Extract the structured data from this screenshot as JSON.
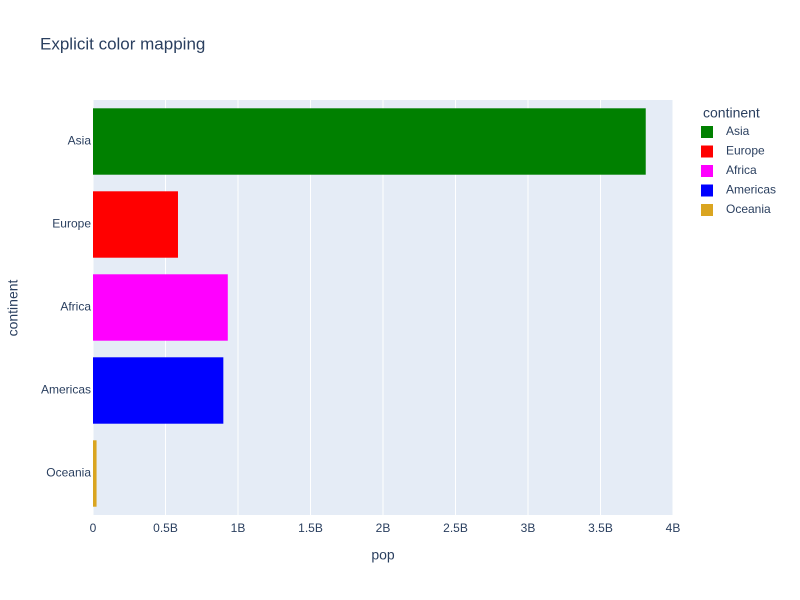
{
  "chart_data": {
    "type": "bar",
    "orientation": "horizontal",
    "title": "Explicit color mapping",
    "x_label": "pop",
    "y_label": "continent",
    "legend_title": "continent",
    "legend": "top-right",
    "grid": true,
    "categories": [
      "Asia",
      "Europe",
      "Africa",
      "Americas",
      "Oceania"
    ],
    "series": [
      {
        "name": "Asia",
        "color": "#008000",
        "values": [
          3811953827,
          null,
          null,
          null,
          null
        ]
      },
      {
        "name": "Europe",
        "color": "#ff0000",
        "values": [
          null,
          586098529,
          null,
          null,
          null
        ]
      },
      {
        "name": "Africa",
        "color": "#ff00ff",
        "values": [
          null,
          null,
          929539692,
          null,
          null
        ]
      },
      {
        "name": "Americas",
        "color": "#0000ff",
        "values": [
          null,
          null,
          null,
          898871184,
          null
        ]
      },
      {
        "name": "Oceania",
        "color": "#daa520",
        "values": [
          null,
          null,
          null,
          null,
          24549947
        ]
      }
    ],
    "xlim": [
      0,
      4000000000
    ],
    "xticks": [
      0,
      {
        "value": 500000000,
        "label": "0.5B"
      },
      {
        "value": 1000000000,
        "label": "1B"
      },
      {
        "value": 1500000000,
        "label": "1.5B"
      },
      {
        "value": 2000000000,
        "label": "2B"
      },
      {
        "value": 2500000000,
        "label": "2.5B"
      },
      {
        "value": 3000000000,
        "label": "3B"
      },
      {
        "value": 3500000000,
        "label": "3.5B"
      },
      {
        "value": 4000000000,
        "label": "4B"
      }
    ]
  }
}
